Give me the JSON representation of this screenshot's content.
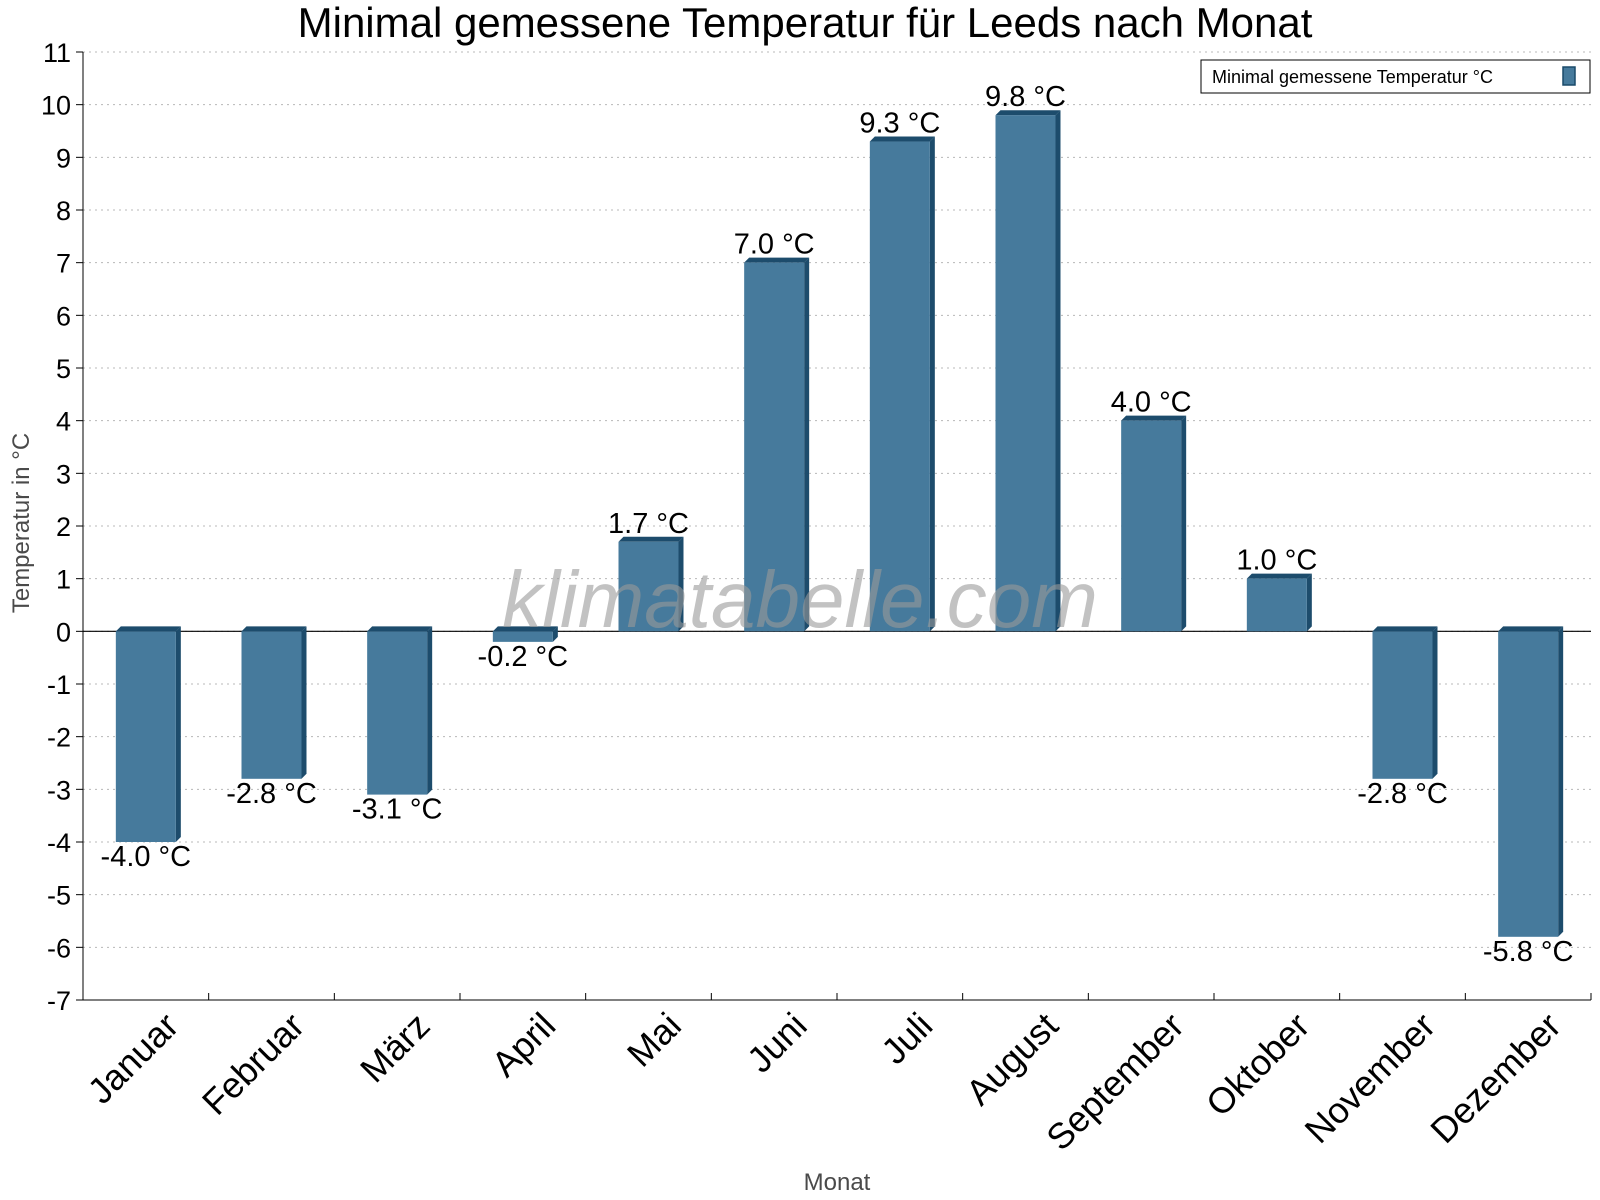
{
  "chart_data": {
    "type": "bar",
    "title": "Minimal gemessene Temperatur für Leeds nach Monat",
    "xlabel": "Monat",
    "ylabel": "Temperatur in °C",
    "ylim": [
      -7,
      11
    ],
    "yticks": [
      11,
      10,
      9,
      8,
      7,
      6,
      5,
      4,
      3,
      2,
      1,
      0,
      -1,
      -2,
      -3,
      -4,
      -5,
      -6,
      -7
    ],
    "grid": true,
    "legend_position": "top-right",
    "watermark": "klimatabelle.com",
    "categories": [
      "Januar",
      "Februar",
      "März",
      "April",
      "Mai",
      "Juni",
      "Juli",
      "August",
      "September",
      "Oktober",
      "November",
      "Dezember"
    ],
    "series": [
      {
        "name": "Minimal gemessene Temperatur °C",
        "color": "#467a9c",
        "values": [
          -4.0,
          -2.8,
          -3.1,
          -0.2,
          1.7,
          7.0,
          9.3,
          9.8,
          4.0,
          1.0,
          -2.8,
          -5.8
        ],
        "labels": [
          "-4.0 °C",
          "-2.8 °C",
          "-3.1 °C",
          "-0.2 °C",
          "1.7 °C",
          "7.0 °C",
          "9.3 °C",
          "9.8 °C",
          "4.0 °C",
          "1.0 °C",
          "-2.8 °C",
          "-5.8 °C"
        ]
      }
    ]
  }
}
